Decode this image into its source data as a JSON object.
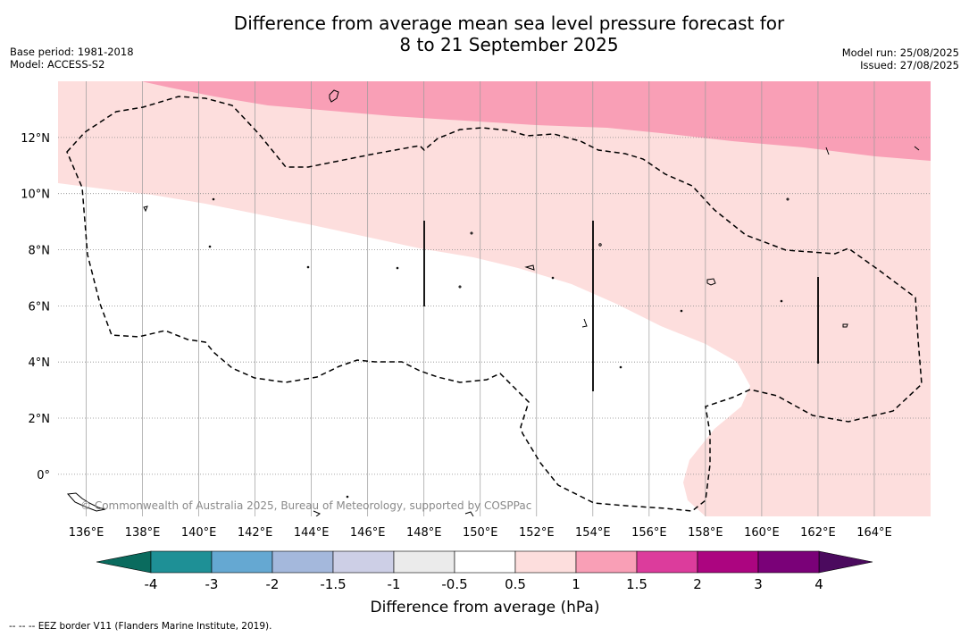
{
  "title": {
    "line1": "Difference from average mean sea level pressure forecast for",
    "line2": "8 to 21 September 2025"
  },
  "meta_left": {
    "base_period": "Base period: 1981-2018",
    "model": "Model: ACCESS-S2"
  },
  "meta_right": {
    "model_run": "Model run: 25/08/2025",
    "issued": "Issued: 27/08/2025"
  },
  "map": {
    "lon_range": [
      135,
      166
    ],
    "lat_range": [
      -1.5,
      14
    ],
    "lon_ticks": [
      136,
      138,
      140,
      142,
      144,
      146,
      148,
      150,
      152,
      154,
      156,
      158,
      160,
      162,
      164
    ],
    "lon_tick_labels": [
      "136°E",
      "138°E",
      "140°E",
      "142°E",
      "144°E",
      "146°E",
      "148°E",
      "150°E",
      "152°E",
      "154°E",
      "156°E",
      "158°E",
      "160°E",
      "162°E",
      "164°E"
    ],
    "lat_ticks": [
      0,
      2,
      4,
      6,
      8,
      10,
      12
    ],
    "lat_tick_labels": [
      "0°",
      "2°N",
      "4°N",
      "6°N",
      "8°N",
      "10°N",
      "12°N"
    ],
    "gridlines": true,
    "watermark": "© Commonwealth of Australia 2025, Bureau of Meteorology, supported by COSPPac",
    "regions": [
      {
        "name": "0.5 to 1 hPa",
        "color": "#fddedd"
      },
      {
        "name": "1 to 1.5 hPa",
        "color": "#f99fb6"
      }
    ]
  },
  "colorbar": {
    "tick_labels": [
      "-4",
      "-3",
      "-2",
      "-1.5",
      "-1",
      "-0.5",
      "0.5",
      "1",
      "1.5",
      "2",
      "3",
      "4"
    ],
    "low_extend_color": "#0a6b5e",
    "high_extend_color": "#4b0a5e",
    "colors": [
      "#1e9096",
      "#65a8d2",
      "#a4b8dc",
      "#cdcfe6",
      "#ebebeb",
      "#ffffff",
      "#fddedd",
      "#f99fb6",
      "#dc3c9c",
      "#ac0580",
      "#7a0178"
    ],
    "label": "Difference from average (hPa)"
  },
  "footer": "--  --  -- EEZ border V11 (Flanders Marine Institute, 2019)."
}
